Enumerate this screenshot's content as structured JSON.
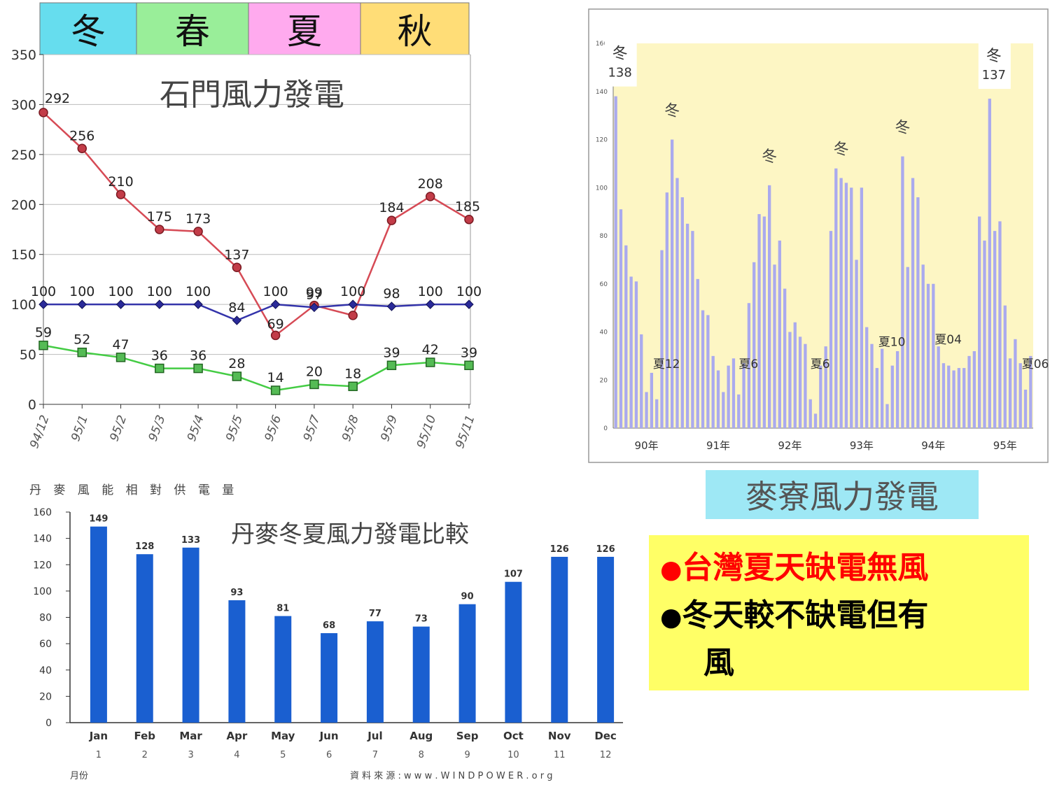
{
  "colors": {
    "winter": "#66ddee",
    "spring": "#99ee99",
    "summer": "#ffaaee",
    "autumn": "#ffdd77",
    "red_series": "#d64a55",
    "blue_series": "#3333aa",
    "green_series": "#44cc44",
    "bar_blue": "#1a5fd0",
    "lavender_bar": "#aaaaee",
    "note_red": "#ff0000"
  },
  "seasons": [
    "冬",
    "春",
    "夏",
    "秋"
  ],
  "shimen_title": "石門風力發電",
  "maliao_label": "麥寮風力發電",
  "notes": {
    "line1": "台灣夏天缺電無風",
    "line2": "冬天較不缺電但有",
    "line3": "風",
    "bullet": "●"
  },
  "chart_data": [
    {
      "type": "line",
      "title": "石門風力發電",
      "categories": [
        "94/12",
        "95/1",
        "95/2",
        "95/3",
        "95/4",
        "95/5",
        "95/6",
        "95/7",
        "95/8",
        "95/9",
        "95/10",
        "95/11"
      ],
      "ylim": [
        0,
        350
      ],
      "yticks": [
        0,
        50,
        100,
        150,
        200,
        250,
        300,
        350
      ],
      "grid": true,
      "series": [
        {
          "color": "red",
          "values": [
            292,
            256,
            210,
            175,
            173,
            137,
            69,
            99,
            89,
            184,
            208,
            185
          ]
        },
        {
          "color": "blue",
          "values": [
            100,
            100,
            100,
            100,
            100,
            84,
            100,
            97,
            100,
            98,
            100,
            100
          ]
        },
        {
          "color": "green",
          "values": [
            59,
            52,
            47,
            36,
            36,
            28,
            14,
            20,
            18,
            39,
            42,
            39
          ]
        }
      ],
      "labels": {
        "red": [
          "292",
          "256",
          "210",
          "175",
          "173",
          "137",
          "69",
          "99",
          "",
          "184",
          "208",
          "185"
        ],
        "blue": [
          "100",
          "100",
          "100",
          "100",
          "100",
          "84",
          "100",
          "97",
          "100",
          "98",
          "100",
          "100"
        ],
        "green": [
          "59",
          "52",
          "47",
          "36",
          "36",
          "28",
          "14",
          "20",
          "18",
          "39",
          "42",
          "39"
        ]
      }
    },
    {
      "type": "bar",
      "yticks": [
        0,
        20,
        40,
        60,
        80,
        100,
        120,
        140,
        160
      ],
      "ylim": [
        0,
        160
      ],
      "year_labels": [
        "90年",
        "91年",
        "92年",
        "93年",
        "94年",
        "95年"
      ],
      "values": [
        138,
        91,
        76,
        63,
        61,
        39,
        15,
        23,
        12,
        74,
        98,
        120,
        104,
        96,
        85,
        82,
        62,
        49,
        47,
        30,
        24,
        15,
        26,
        29,
        14,
        27,
        52,
        69,
        89,
        88,
        101,
        68,
        78,
        58,
        40,
        44,
        38,
        35,
        12,
        6,
        26,
        34,
        82,
        108,
        104,
        102,
        100,
        70,
        100,
        42,
        35,
        25,
        33,
        10,
        26,
        32,
        113,
        67,
        104,
        96,
        68,
        60,
        60,
        34,
        27,
        26,
        24,
        25,
        25,
        30,
        32,
        88,
        78,
        137,
        82,
        86,
        51,
        29,
        37,
        27,
        16,
        30
      ],
      "annotations": [
        {
          "text": "冬",
          "sub": "138"
        },
        {
          "text": "冬",
          "sub": ""
        },
        {
          "text": "冬",
          "sub": ""
        },
        {
          "text": "冬",
          "sub": ""
        },
        {
          "text": "冬",
          "sub": ""
        },
        {
          "text": "冬",
          "sub": "137"
        },
        {
          "text": "夏12"
        },
        {
          "text": "夏6"
        },
        {
          "text": "夏6"
        },
        {
          "text": "夏10"
        },
        {
          "text": "夏04"
        },
        {
          "text": "夏06"
        }
      ]
    },
    {
      "type": "bar",
      "title": "丹麥冬夏風力發電比較",
      "subtitle": "丹 麥 風 能 相 對 供 電 量",
      "categories": [
        "Jan",
        "Feb",
        "Mar",
        "Apr",
        "May",
        "Jun",
        "Jul",
        "Aug",
        "Sep",
        "Oct",
        "Nov",
        "Dec"
      ],
      "month_numbers": [
        "1",
        "2",
        "3",
        "4",
        "5",
        "6",
        "7",
        "8",
        "9",
        "10",
        "11",
        "12"
      ],
      "values": [
        149,
        128,
        133,
        93,
        81,
        68,
        77,
        73,
        90,
        107,
        126,
        126
      ],
      "ylim": [
        0,
        160
      ],
      "yticks": [
        0,
        20,
        40,
        60,
        80,
        100,
        120,
        140,
        160
      ],
      "xlabel": "月份",
      "source": "資 料 來 源 :  w w w . W I N D P O W E R . o r g"
    }
  ]
}
